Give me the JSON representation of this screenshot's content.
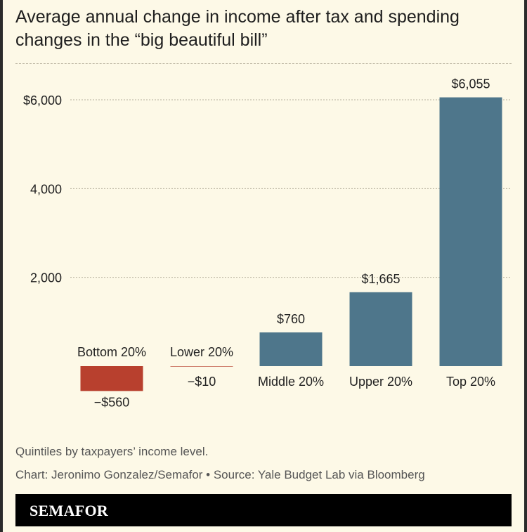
{
  "title": "Average annual change in income after tax and spending changes in the “big beautiful bill”",
  "footnote": "Quintiles by taxpayers’ income level.",
  "credit": "Chart: Jeronimo Gonzalez/Semafor • Source: Yale Budget Lab via Bloomberg",
  "brand": "SEMAFOR",
  "chart_data": {
    "type": "bar",
    "categories": [
      "Bottom 20%",
      "Lower 20%",
      "Middle 20%",
      "Upper 20%",
      "Top 20%"
    ],
    "values": [
      -560,
      -10,
      760,
      1665,
      6055
    ],
    "value_labels": [
      "−$560",
      "−$10",
      "$760",
      "$1,665",
      "$6,055"
    ],
    "ylim": [
      -1000,
      6800
    ],
    "yticks": [
      {
        "value": 6000,
        "label": "$6,000"
      },
      {
        "value": 4000,
        "label": "4,000"
      },
      {
        "value": 2000,
        "label": "2,000"
      }
    ],
    "grid": true,
    "colors": {
      "positive": "#4e768b",
      "negative": "#b8402e"
    }
  }
}
